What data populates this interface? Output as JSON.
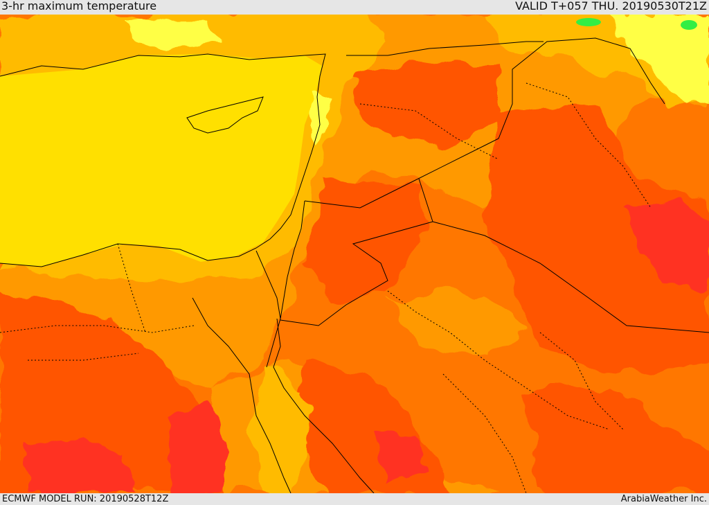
{
  "header": {
    "title": "3-hr maximum temperature",
    "valid": "VALID T+057 THU. 20190530T21Z"
  },
  "footer": {
    "model_run": "ECMWF MODEL RUN: 20190528T12Z",
    "credit": "ArabiaWeather Inc."
  },
  "colors": {
    "sea_yellow": "#ffe000",
    "gold": "#ffbb00",
    "light_orange": "#ff9900",
    "orange": "#ff7700",
    "red_orange": "#ff5500",
    "red": "#ff3322",
    "pale_yellow": "#ffff44",
    "green": "#33ee44",
    "border": "#000000"
  }
}
